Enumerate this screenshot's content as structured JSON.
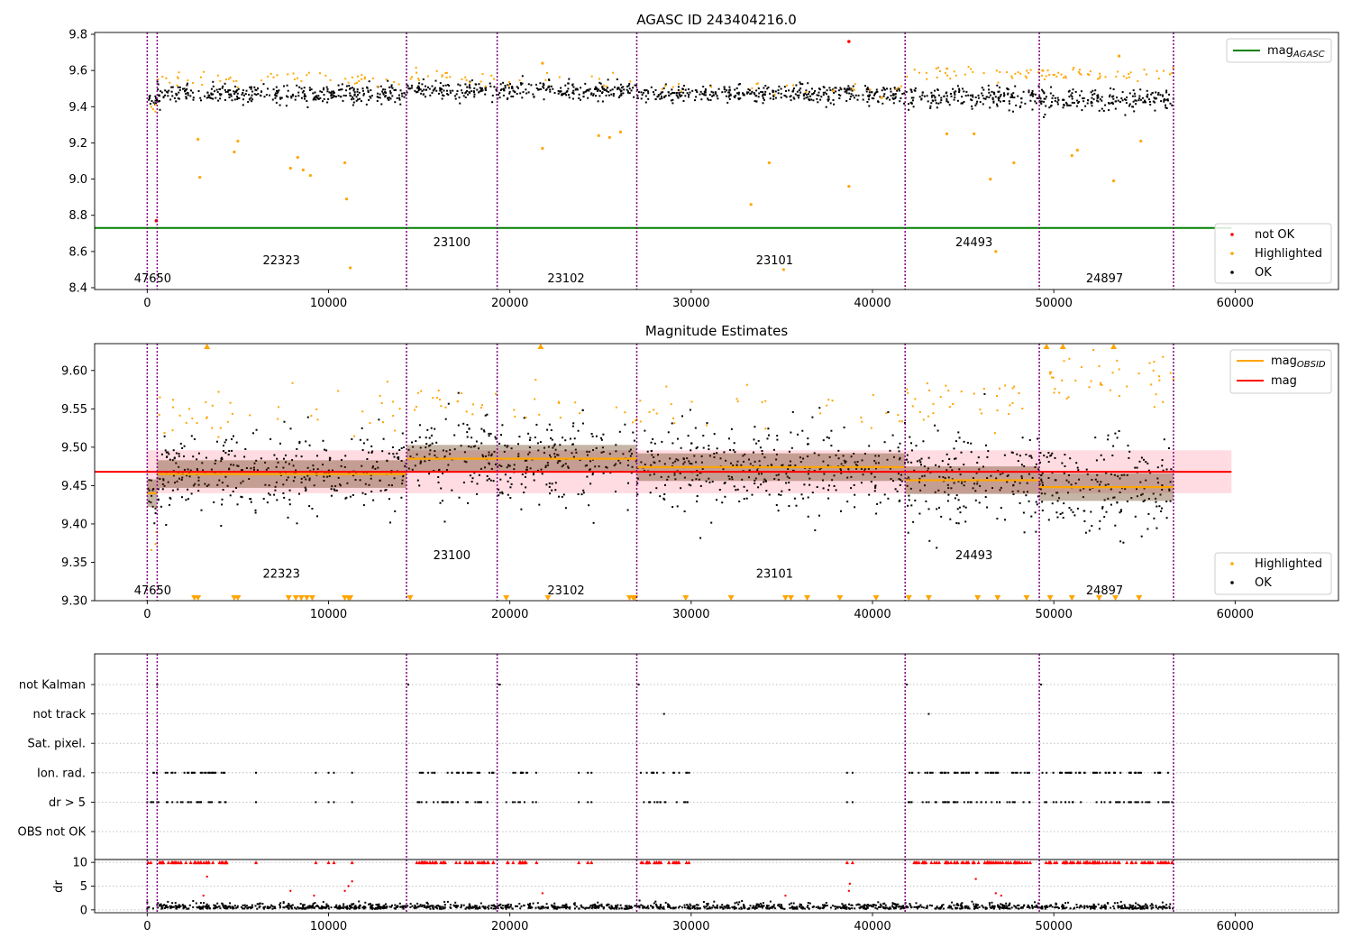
{
  "colors": {
    "ok": "#000000",
    "highlighted": "#ffa500",
    "not_ok": "#ff0000",
    "mag_agasc_line": "#008000",
    "mag_line": "#ff0000",
    "mag_obsid_line": "#ffa500",
    "obsid_boundary": "#800080",
    "band_fill": "#ffc0cb"
  },
  "chart_data": [
    {
      "type": "scatter",
      "title": "AGASC ID 243404216.0",
      "xlim": [
        -2900,
        65700
      ],
      "ylim": [
        8.39,
        9.81
      ],
      "xticks": [
        0,
        10000,
        20000,
        30000,
        40000,
        50000,
        60000
      ],
      "yticks": [
        8.4,
        8.6,
        8.8,
        9.0,
        9.2,
        9.4,
        9.6,
        9.8
      ],
      "ytick_labels": [
        "8.4",
        "8.6",
        "8.8",
        "9.0",
        "9.2",
        "9.4",
        "9.6",
        "9.8"
      ],
      "mag_agasc": 8.73,
      "legend_lines": [
        {
          "label": "mag",
          "subscript": "AGASC",
          "color_key": "mag_agasc_line"
        }
      ],
      "legend_points": [
        {
          "label": "not OK",
          "color_key": "not_ok"
        },
        {
          "label": "Highlighted",
          "color_key": "highlighted"
        },
        {
          "label": "OK",
          "color_key": "ok"
        }
      ],
      "legend_lines_position": "top-right",
      "legend_points_position": "lower-right",
      "obsid_labels": [
        {
          "text": "47650",
          "x": 300,
          "y": 8.43
        },
        {
          "text": "22323",
          "x": 7400,
          "y": 8.53
        },
        {
          "text": "23100",
          "x": 16800,
          "y": 8.63
        },
        {
          "text": "23102",
          "x": 23100,
          "y": 8.43
        },
        {
          "text": "23101",
          "x": 34600,
          "y": 8.53
        },
        {
          "text": "24493",
          "x": 45600,
          "y": 8.63
        },
        {
          "text": "24897",
          "x": 52800,
          "y": 8.43
        }
      ],
      "segments": [
        {
          "x0": 0,
          "x1": 550,
          "ok_mean": 9.44,
          "ok_spread": 0.04,
          "hl_mean": 9.4,
          "hl_frac": 0.25
        },
        {
          "x0": 550,
          "x1": 14300,
          "ok_mean": 9.47,
          "ok_spread": 0.06,
          "hl_mean": 9.55,
          "hl_frac": 0.15
        },
        {
          "x0": 14300,
          "x1": 19300,
          "ok_mean": 9.49,
          "ok_spread": 0.06,
          "hl_mean": 9.56,
          "hl_frac": 0.18
        },
        {
          "x0": 19300,
          "x1": 27000,
          "ok_mean": 9.49,
          "ok_spread": 0.06,
          "hl_mean": 9.55,
          "hl_frac": 0.06
        },
        {
          "x0": 27000,
          "x1": 41800,
          "ok_mean": 9.47,
          "ok_spread": 0.06,
          "hl_mean": 9.5,
          "hl_frac": 0.06
        },
        {
          "x0": 41800,
          "x1": 49200,
          "ok_mean": 9.45,
          "ok_spread": 0.07,
          "hl_mean": 9.58,
          "hl_frac": 0.2
        },
        {
          "x0": 49200,
          "x1": 56600,
          "ok_mean": 9.44,
          "ok_spread": 0.07,
          "hl_mean": 9.58,
          "hl_frac": 0.25
        }
      ],
      "outliers_highlighted": [
        [
          2800,
          9.22
        ],
        [
          2900,
          9.01
        ],
        [
          4800,
          9.15
        ],
        [
          5000,
          9.21
        ],
        [
          7900,
          9.06
        ],
        [
          8300,
          9.12
        ],
        [
          8600,
          9.05
        ],
        [
          9000,
          9.02
        ],
        [
          10900,
          9.09
        ],
        [
          11000,
          8.89
        ],
        [
          11200,
          8.51
        ],
        [
          21800,
          9.17
        ],
        [
          21800,
          9.64
        ],
        [
          24900,
          9.24
        ],
        [
          25500,
          9.23
        ],
        [
          26100,
          9.26
        ],
        [
          33300,
          8.86
        ],
        [
          34300,
          9.09
        ],
        [
          35100,
          8.5
        ],
        [
          38700,
          8.96
        ],
        [
          40500,
          9.45
        ],
        [
          44100,
          9.25
        ],
        [
          45600,
          9.25
        ],
        [
          46500,
          9.0
        ],
        [
          46800,
          8.6
        ],
        [
          47800,
          9.09
        ],
        [
          51000,
          9.13
        ],
        [
          51300,
          9.16
        ],
        [
          53300,
          8.99
        ],
        [
          53600,
          9.68
        ],
        [
          54800,
          9.21
        ]
      ],
      "not_ok_points": [
        [
          500,
          8.77
        ],
        [
          38700,
          9.76
        ]
      ]
    },
    {
      "type": "scatter",
      "title": "Magnitude Estimates",
      "xlim": [
        -2900,
        65700
      ],
      "ylim": [
        9.3,
        9.635
      ],
      "xticks": [
        0,
        10000,
        20000,
        30000,
        40000,
        50000,
        60000
      ],
      "yticks": [
        9.3,
        9.35,
        9.4,
        9.45,
        9.5,
        9.55,
        9.6
      ],
      "ytick_labels": [
        "9.30",
        "9.35",
        "9.40",
        "9.45",
        "9.50",
        "9.55",
        "9.60"
      ],
      "mag": 9.468,
      "mag_band": [
        9.44,
        9.496
      ],
      "mag_obsid": [
        {
          "x0": 0,
          "x1": 550,
          "value": 9.44
        },
        {
          "x0": 550,
          "x1": 14300,
          "value": 9.465
        },
        {
          "x0": 14300,
          "x1": 19300,
          "value": 9.485
        },
        {
          "x0": 19300,
          "x1": 27000,
          "value": 9.485
        },
        {
          "x0": 27000,
          "x1": 41800,
          "value": 9.474
        },
        {
          "x0": 41800,
          "x1": 49200,
          "value": 9.457
        },
        {
          "x0": 49200,
          "x1": 56600,
          "value": 9.448
        }
      ],
      "legend_lines": [
        {
          "label": "mag",
          "subscript": "OBSID",
          "color_key": "mag_obsid_line"
        },
        {
          "label": "mag",
          "subscript": "",
          "color_key": "mag_line"
        }
      ],
      "legend_points": [
        {
          "label": "Highlighted",
          "color_key": "highlighted"
        },
        {
          "label": "OK",
          "color_key": "ok"
        }
      ],
      "legend_lines_position": "top-right",
      "legend_points_position": "lower-right",
      "obsid_labels": [
        {
          "text": "47650",
          "x": 300,
          "y": 9.308
        },
        {
          "text": "22323",
          "x": 7400,
          "y": 9.33
        },
        {
          "text": "23100",
          "x": 16800,
          "y": 9.354
        },
        {
          "text": "23102",
          "x": 23100,
          "y": 9.308
        },
        {
          "text": "23101",
          "x": 34600,
          "y": 9.33
        },
        {
          "text": "24493",
          "x": 45600,
          "y": 9.354
        },
        {
          "text": "24897",
          "x": 52800,
          "y": 9.308
        }
      ],
      "segments": [
        {
          "x0": 0,
          "x1": 550,
          "ok_mean": 9.44,
          "ok_spread": 0.04,
          "hl_mean": 9.38,
          "hl_frac": 0.25
        },
        {
          "x0": 550,
          "x1": 14300,
          "ok_mean": 9.465,
          "ok_spread": 0.065,
          "hl_mean": 9.54,
          "hl_frac": 0.12
        },
        {
          "x0": 14300,
          "x1": 19300,
          "ok_mean": 9.485,
          "ok_spread": 0.065,
          "hl_mean": 9.555,
          "hl_frac": 0.15
        },
        {
          "x0": 19300,
          "x1": 27000,
          "ok_mean": 9.485,
          "ok_spread": 0.06,
          "hl_mean": 9.545,
          "hl_frac": 0.08
        },
        {
          "x0": 27000,
          "x1": 41800,
          "ok_mean": 9.474,
          "ok_spread": 0.065,
          "hl_mean": 9.545,
          "hl_frac": 0.08
        },
        {
          "x0": 41800,
          "x1": 49200,
          "ok_mean": 9.457,
          "ok_spread": 0.075,
          "hl_mean": 9.56,
          "hl_frac": 0.18
        },
        {
          "x0": 49200,
          "x1": 56600,
          "ok_mean": 9.448,
          "ok_spread": 0.07,
          "hl_mean": 9.585,
          "hl_frac": 0.22
        }
      ],
      "clipped_low_x": [
        2600,
        2800,
        4800,
        5000,
        7800,
        8200,
        8500,
        8800,
        9100,
        10900,
        11100,
        11200,
        14500,
        19800,
        22100,
        26600,
        26800,
        26900,
        29700,
        32200,
        35200,
        35500,
        36400,
        38200,
        40200,
        42000,
        43100,
        45800,
        46900,
        48500,
        49800,
        51000,
        52500,
        53400,
        54700
      ],
      "clipped_high_x": [
        3300,
        21700,
        49600,
        50500,
        53300
      ]
    },
    {
      "type": "scatter",
      "title": "",
      "xlim": [
        -2900,
        65700
      ],
      "ylabel": "dr",
      "category_labels": [
        "not Kalman",
        "not track",
        "Sat. pixel.",
        "Ion. rad.",
        "dr > 5",
        "OBS not OK"
      ],
      "dr_yticks": [
        0,
        5,
        10
      ],
      "dr_ylim": [
        -0.6,
        10.6
      ],
      "xticks": [
        0,
        10000,
        20000,
        30000,
        40000,
        50000,
        60000
      ],
      "flag_points": {
        "not Kalman": [
          550,
          14400,
          19400,
          19450,
          27100,
          41900,
          49300
        ],
        "not track": [
          28500,
          43100
        ],
        "Sat. pixel.": [],
        "Ion. rad.": {
          "ranges": [
            [
              0,
              4500
            ],
            [
              14800,
              19100
            ],
            [
              19800,
              21500
            ],
            [
              27200,
              29900
            ],
            [
              41900,
              48700
            ],
            [
              49300,
              56600
            ]
          ],
          "isolated": [
            6000,
            9300,
            10000,
            10300,
            11300,
            23800,
            24300,
            24500,
            38600,
            38900
          ]
        },
        "dr > 5": {
          "ranges": [
            [
              0,
              4500
            ],
            [
              14800,
              19100
            ],
            [
              19800,
              21500
            ],
            [
              27200,
              29900
            ],
            [
              41900,
              48700
            ],
            [
              49300,
              56600
            ]
          ],
          "isolated": [
            6000,
            9300,
            10000,
            10300,
            11300,
            23800,
            24300,
            24500,
            38600,
            38900
          ]
        },
        "OBS not OK": []
      },
      "dr_outliers": [
        [
          3300,
          7
        ],
        [
          3100,
          3
        ],
        [
          7900,
          4
        ],
        [
          9200,
          3
        ],
        [
          10900,
          4
        ],
        [
          11100,
          5
        ],
        [
          11300,
          6
        ],
        [
          21800,
          3.5
        ],
        [
          35200,
          3
        ],
        [
          38700,
          4
        ],
        [
          38750,
          5.5
        ],
        [
          45700,
          6.5
        ],
        [
          46800,
          3.5
        ],
        [
          47100,
          3
        ]
      ]
    }
  ],
  "obsid_boundaries": [
    0,
    550,
    14300,
    19300,
    27000,
    41800,
    49200,
    56600
  ]
}
